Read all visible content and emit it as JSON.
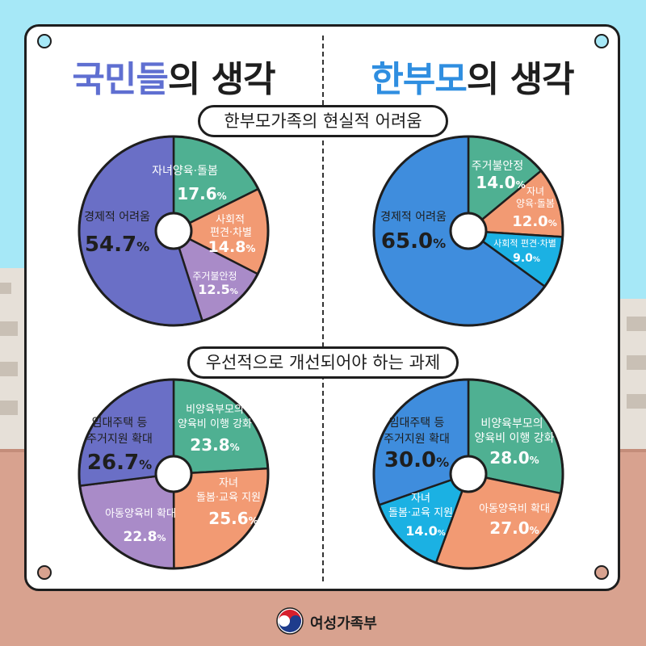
{
  "headers": {
    "left": {
      "highlight": "국민들",
      "rest": "의 생각"
    },
    "right": {
      "highlight": "한부모",
      "rest": "의 생각"
    }
  },
  "sections": {
    "top_title": "한부모가족의 현실적 어려움",
    "bottom_title": "우선적으로 개선되어야 하는 과제"
  },
  "footer": {
    "logo_icon": "taegeuk-icon",
    "org_name": "여성가족부"
  },
  "colors": {
    "background_sky": "#a6e8f7",
    "ground": "#d8a28f",
    "purple": "#6a6fc6",
    "green": "#4fb092",
    "salmon": "#f29a73",
    "lavender": "#a98bc8",
    "blue": "#3f8ddd",
    "cyan": "#1bb1e3"
  },
  "chart_data": [
    {
      "type": "pie",
      "group": "국민들의 생각",
      "section": "한부모가족의 현실적 어려움",
      "slices": [
        {
          "label": "자녀양육·돌봄",
          "value": 17.6,
          "color": "#4fb092"
        },
        {
          "label": "사회적 편견·차별",
          "value": 14.8,
          "color": "#f29a73"
        },
        {
          "label": "주거불안정",
          "value": 12.5,
          "color": "#a98bc8"
        },
        {
          "label": "경제적 어려움",
          "value": 54.7,
          "color": "#6a6fc6"
        }
      ]
    },
    {
      "type": "pie",
      "group": "한부모의 생각",
      "section": "한부모가족의 현실적 어려움",
      "slices": [
        {
          "label": "주거불안정",
          "value": 14.0,
          "color": "#4fb092"
        },
        {
          "label": "자녀 양육·돌봄",
          "value": 12.0,
          "color": "#f29a73"
        },
        {
          "label": "사회적 편견·차별",
          "value": 9.0,
          "color": "#1bb1e3"
        },
        {
          "label": "경제적 어려움",
          "value": 65.0,
          "color": "#3f8ddd"
        }
      ]
    },
    {
      "type": "pie",
      "group": "국민들의 생각",
      "section": "우선적으로 개선되어야 하는 과제",
      "slices": [
        {
          "label": "비양육부모의 양육비 이행 강화",
          "value": 23.8,
          "color": "#4fb092"
        },
        {
          "label": "자녀 돌봄·교육 지원",
          "value": 25.6,
          "color": "#f29a73"
        },
        {
          "label": "아동양육비 확대",
          "value": 22.8,
          "color": "#a98bc8"
        },
        {
          "label": "임대주택 등 주거지원 확대",
          "value": 26.7,
          "color": "#6a6fc6"
        }
      ]
    },
    {
      "type": "pie",
      "group": "한부모의 생각",
      "section": "우선적으로 개선되어야 하는 과제",
      "slices": [
        {
          "label": "비양육부모의 양육비 이행 강화",
          "value": 28.0,
          "color": "#4fb092"
        },
        {
          "label": "아동양육비 확대",
          "value": 27.0,
          "color": "#f29a73"
        },
        {
          "label": "자녀 돌봄·교육 지원",
          "value": 14.0,
          "color": "#1bb1e3"
        },
        {
          "label": "임대주택 등 주거지원 확대",
          "value": 30.0,
          "color": "#3f8ddd"
        }
      ]
    }
  ]
}
